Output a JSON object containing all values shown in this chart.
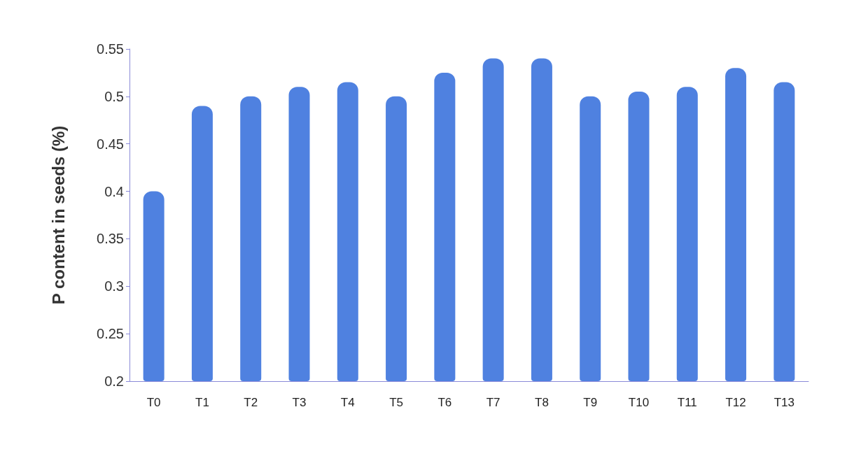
{
  "chart_data": {
    "type": "bar",
    "ylabel": "P content in seeds (%)",
    "categories": [
      "T0",
      "T1",
      "T2",
      "T3",
      "T4",
      "T5",
      "T6",
      "T7",
      "T8",
      "T9",
      "T10",
      "T11",
      "T12",
      "T13"
    ],
    "values": [
      0.4,
      0.49,
      0.5,
      0.51,
      0.515,
      0.5,
      0.525,
      0.54,
      0.54,
      0.5,
      0.505,
      0.51,
      0.53,
      0.515
    ],
    "color": "#4f81e0",
    "ylim": [
      0.2,
      0.55
    ],
    "yticks": [
      0.2,
      0.25,
      0.3,
      0.35,
      0.4,
      0.45,
      0.5,
      0.55
    ],
    "grid": false
  }
}
